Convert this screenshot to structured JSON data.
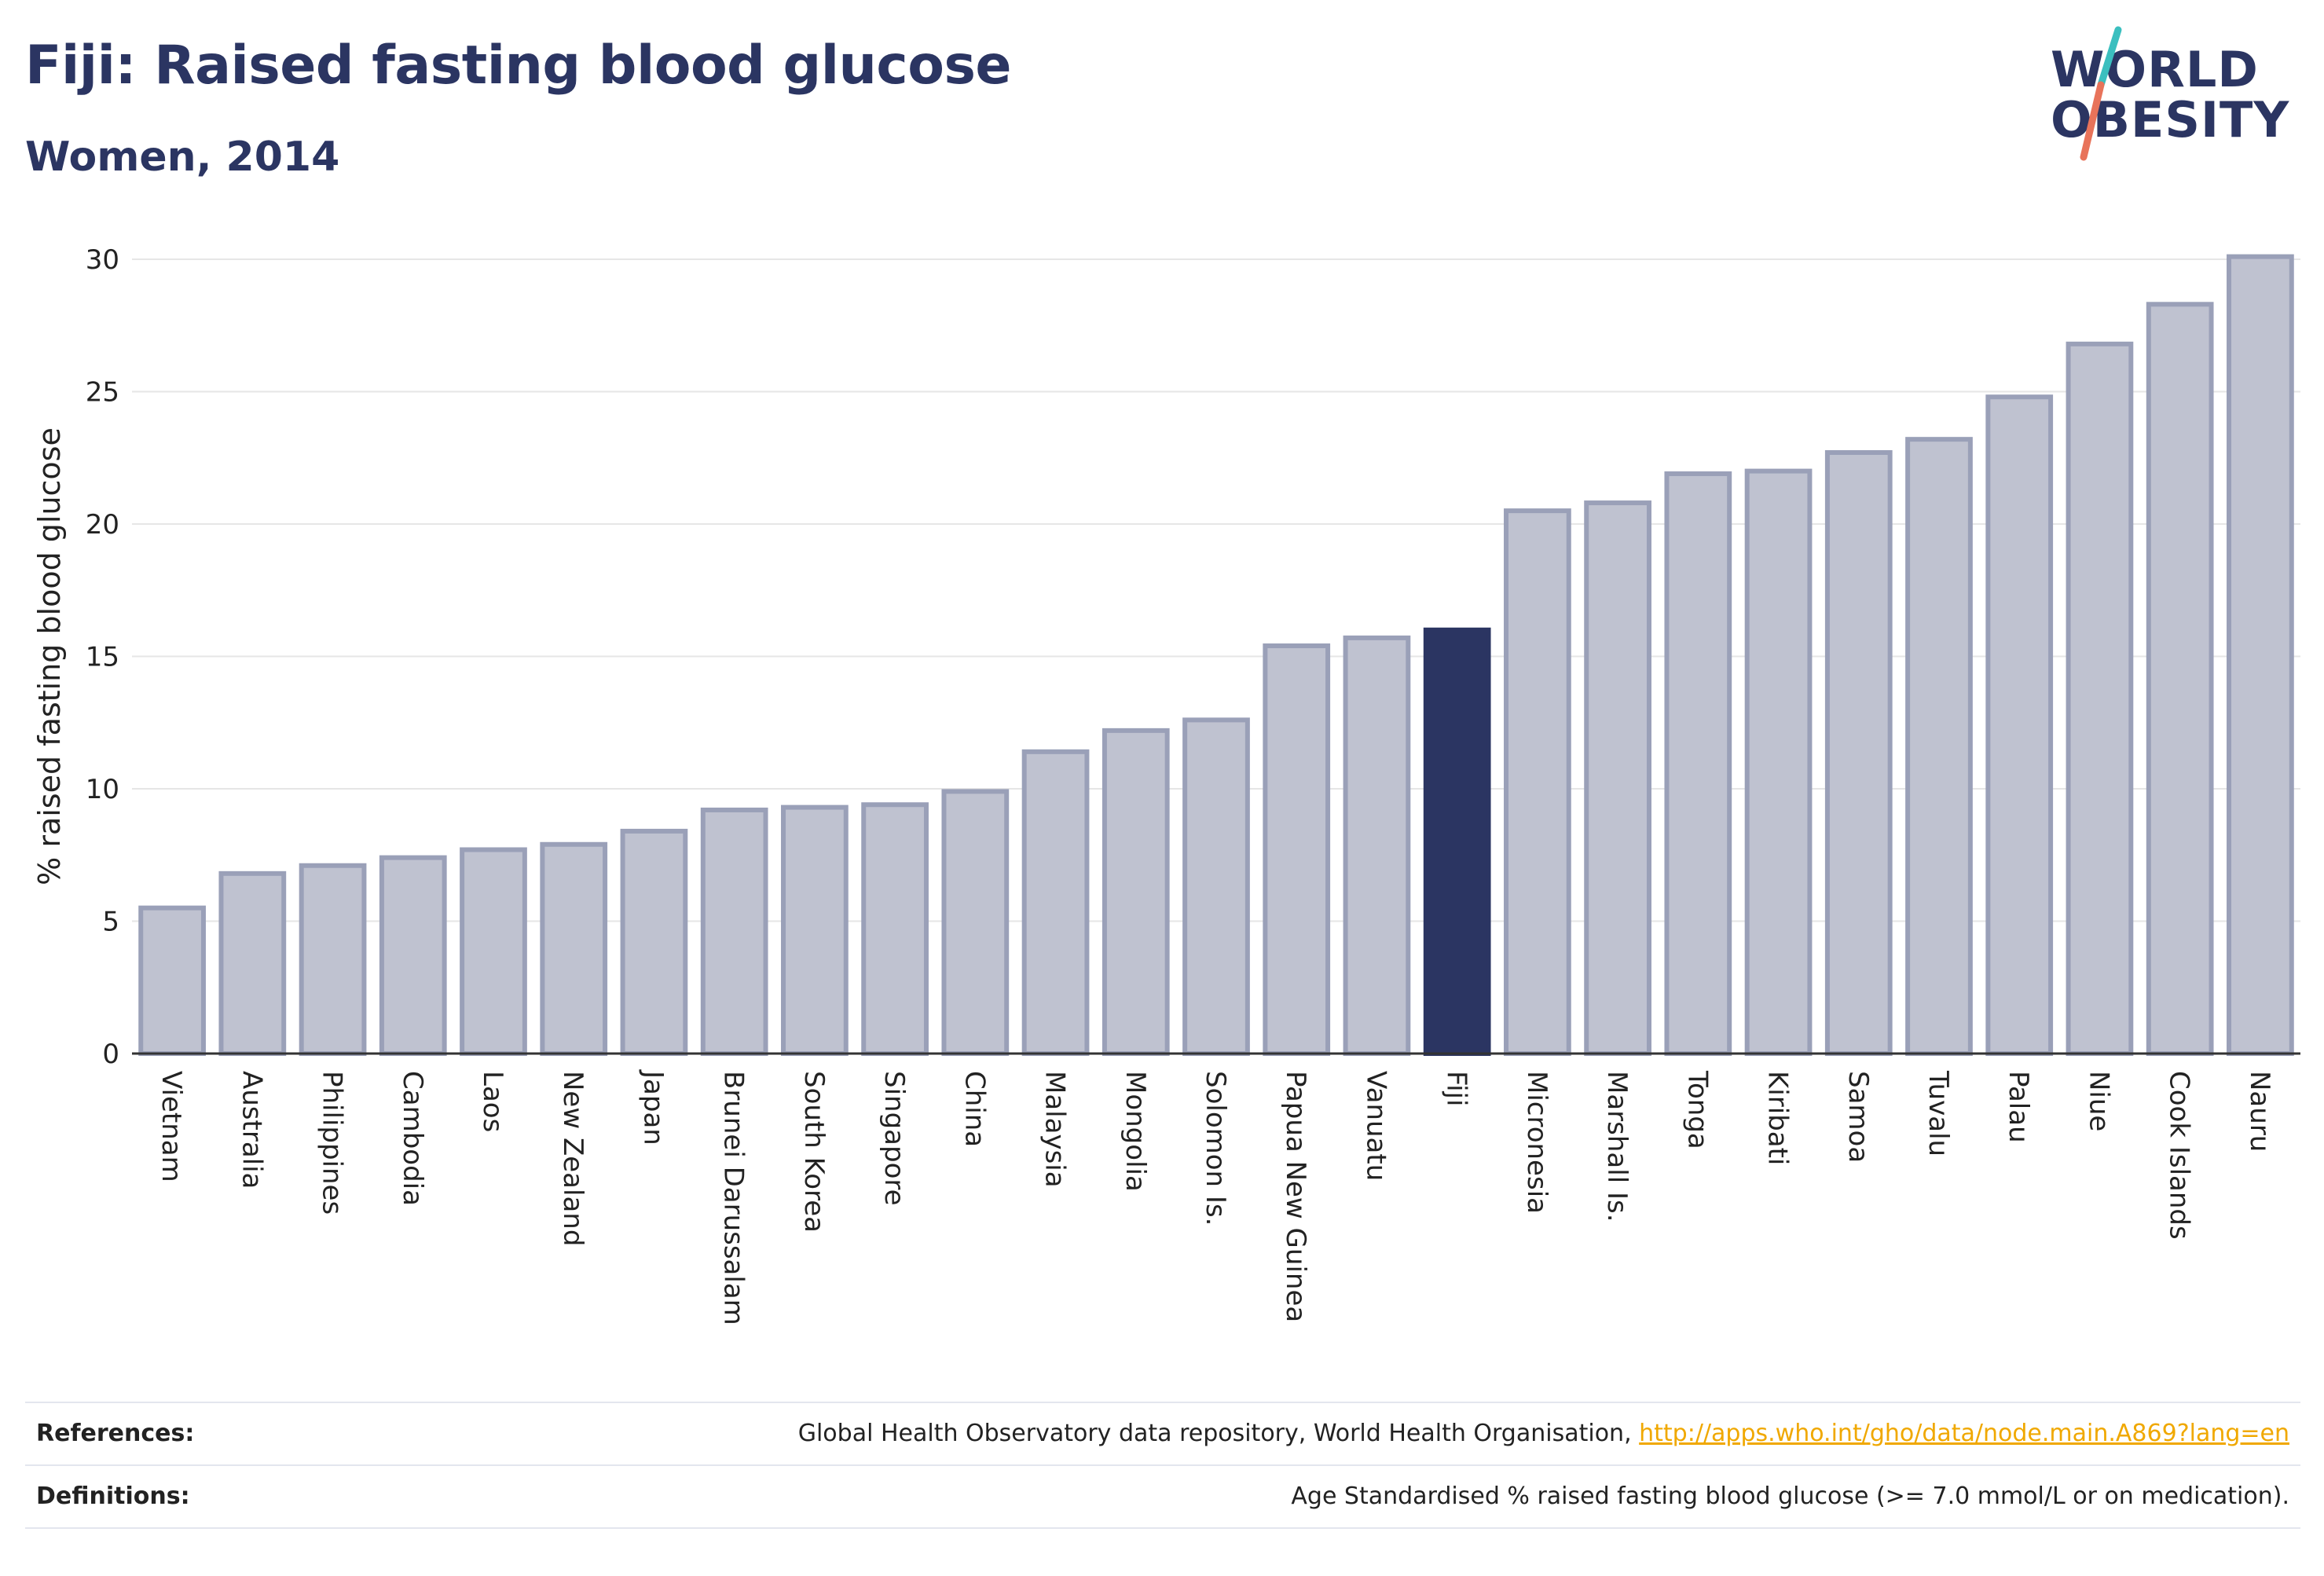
{
  "header": {
    "title": "Fiji: Raised fasting blood glucose",
    "subtitle": "Women, 2014"
  },
  "logo": {
    "line1": "WORLD",
    "line2": "OBESITY",
    "accent_colors": [
      "#3bbfbf",
      "#e8735a"
    ]
  },
  "chart_data": {
    "type": "bar",
    "title": "Fiji: Raised fasting blood glucose",
    "subtitle": "Women, 2014",
    "xlabel": "",
    "ylabel": "% raised fasting blood glucose",
    "ylim": [
      0,
      30
    ],
    "yticks": [
      0,
      5,
      10,
      15,
      20,
      25,
      30
    ],
    "grid": true,
    "highlight": "Fiji",
    "colors": {
      "bar": "#bfc2d0",
      "bar_outline": "#9aa0b8",
      "highlight": "#2b3562"
    },
    "categories": [
      "Vietnam",
      "Australia",
      "Philippines",
      "Cambodia",
      "Laos",
      "New Zealand",
      "Japan",
      "Brunei Darussalam",
      "South Korea",
      "Singapore",
      "China",
      "Malaysia",
      "Mongolia",
      "Solomon Is.",
      "Papua New Guinea",
      "Vanuatu",
      "Fiji",
      "Micronesia",
      "Marshall Is.",
      "Tonga",
      "Kiribati",
      "Samoa",
      "Tuvalu",
      "Palau",
      "Niue",
      "Cook Islands",
      "Nauru"
    ],
    "values": [
      5.5,
      6.8,
      7.1,
      7.4,
      7.7,
      7.9,
      8.4,
      9.2,
      9.3,
      9.4,
      9.9,
      11.4,
      12.2,
      12.6,
      15.4,
      15.7,
      16.0,
      20.5,
      20.8,
      21.9,
      22.0,
      22.7,
      23.2,
      24.8,
      26.8,
      28.3,
      30.1
    ]
  },
  "footer": {
    "references_label": "References:",
    "references_text": "Global Health Observatory data repository, World Health Organisation, ",
    "references_link": "http://apps.who.int/gho/data/node.main.A869?lang=en",
    "definitions_label": "Definitions:",
    "definitions_text": "Age Standardised % raised fasting blood glucose (>= 7.0 mmol/L or on medication)."
  }
}
